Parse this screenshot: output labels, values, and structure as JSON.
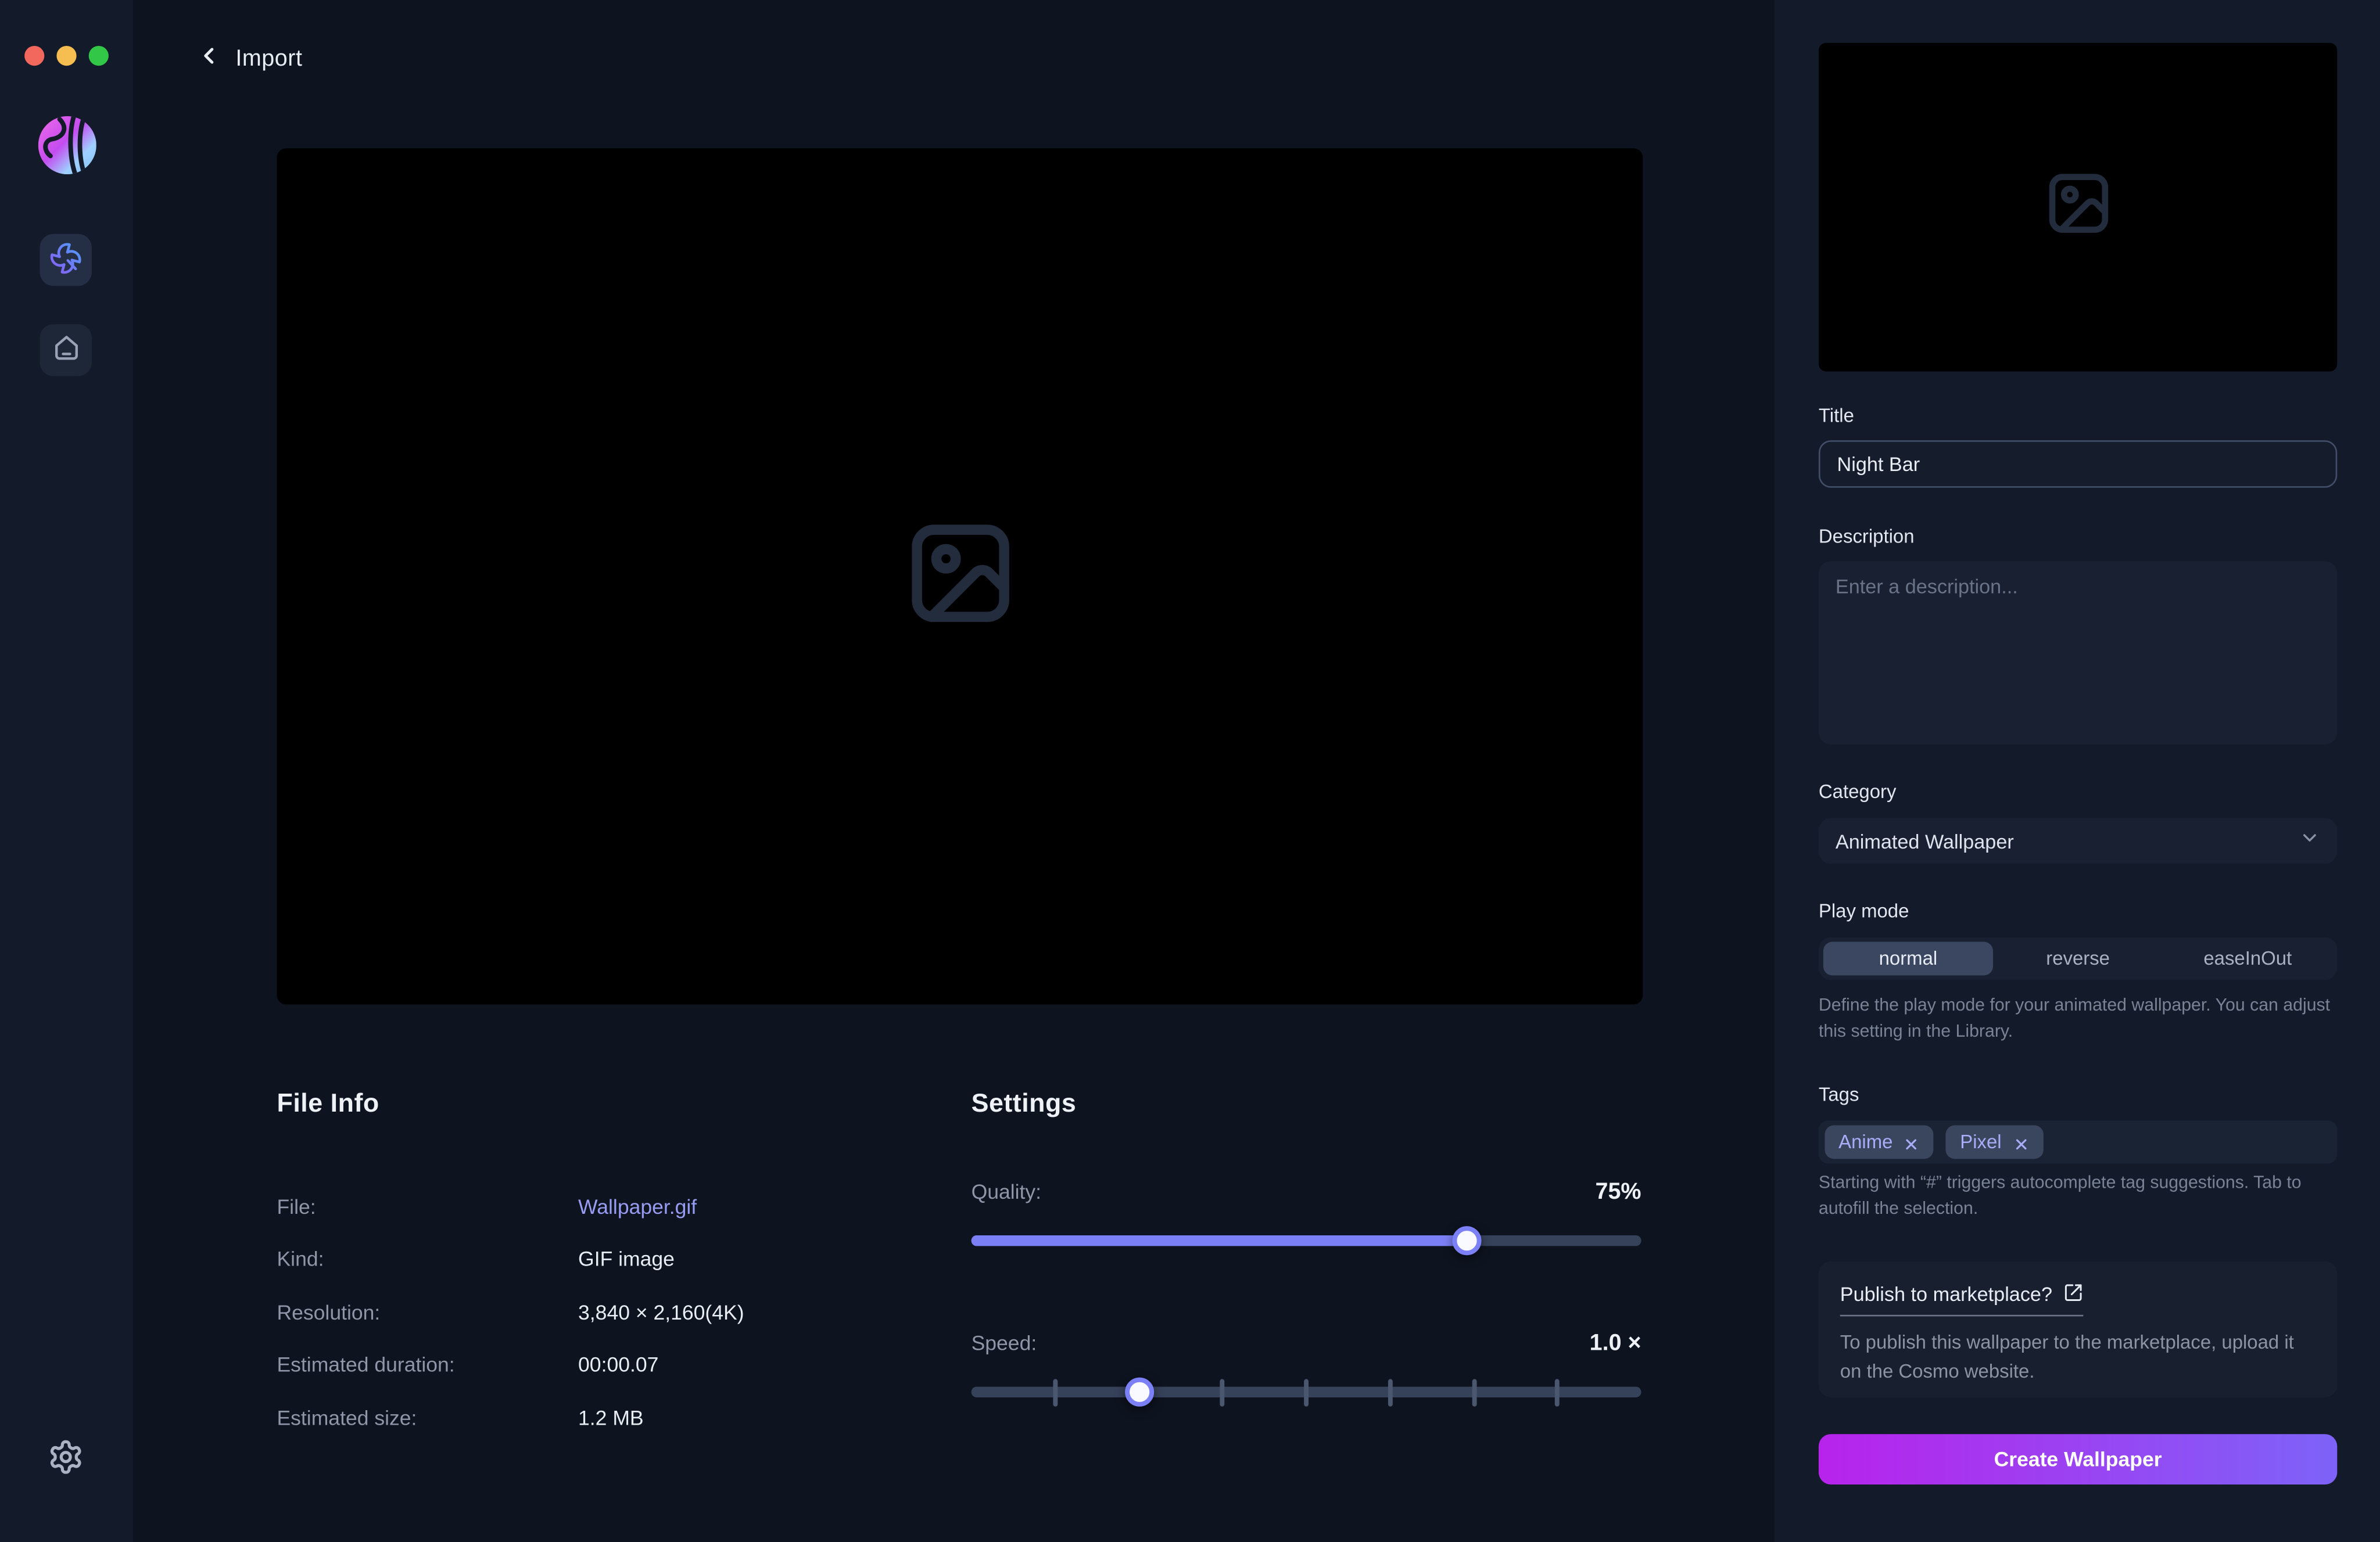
{
  "window": {
    "traffic_colors": {
      "close": "#f2685c",
      "minimize": "#f6be50",
      "zoom": "#33c748"
    }
  },
  "header": {
    "title": "Import"
  },
  "file_info": {
    "title": "File Info",
    "rows": [
      {
        "label": "File:",
        "value": "Wallpaper.gif"
      },
      {
        "label": "Kind:",
        "value": "GIF image"
      },
      {
        "label": "Resolution:",
        "value": "3,840 × 2,160(4K)"
      },
      {
        "label": "Estimated duration:",
        "value": "00:00.07"
      },
      {
        "label": "Estimated size:",
        "value": "1.2 MB"
      }
    ]
  },
  "settings": {
    "title": "Settings",
    "quality_label": "Quality:",
    "quality_value": "75%",
    "quality_percent": 74,
    "speed_label": "Speed:",
    "speed_value": "1.0 ×",
    "speed_percent": 25,
    "speed_tick_percents": [
      12.5,
      25,
      37.5,
      50,
      62.5,
      75,
      87.5
    ]
  },
  "panel": {
    "title_label": "Title",
    "title_value": "Night Bar",
    "description_label": "Description",
    "description_placeholder": "Enter a description...",
    "category_label": "Category",
    "category_value": "Animated Wallpaper",
    "play_mode_label": "Play mode",
    "play_modes": {
      "0": "normal",
      "1": "reverse",
      "2": "easeInOut"
    },
    "play_mode_selected": "normal",
    "play_mode_help": "Define the play mode for your animated wallpaper. You can adjust this setting in the Library.",
    "tags_label": "Tags",
    "tags": {
      "0": "Anime",
      "1": "Pixel"
    },
    "tags_help": "Starting with “#” triggers autocomplete tag suggestions. Tab to autofill the selection.",
    "publish_title": "Publish to marketplace?",
    "publish_body": "To publish this wallpaper to the marketplace, upload it on the Cosmo website.",
    "create_label": "Create Wallpaper"
  },
  "icons": {
    "image-placeholder-icon": "picture frame with circle and mountains",
    "pinwheel-icon": "four-blade pinwheel with stem",
    "home-icon": "house outline with dash",
    "gear-icon": "settings cog",
    "back-chevron-icon": "left chevron",
    "chevron-down-icon": "select dropdown arrow",
    "external-link-icon": "box with arrow to top right",
    "close-icon": "x cross"
  },
  "colors": {
    "accent_purple": "#7c80f6",
    "link_purple": "#989df3",
    "tag_purple": "#a9adf9",
    "button_gradient_start": "#b823ec",
    "button_gradient_end": "#7d63f8",
    "bg_main": "#0d131f",
    "bg_sidebar": "#131a2a"
  }
}
